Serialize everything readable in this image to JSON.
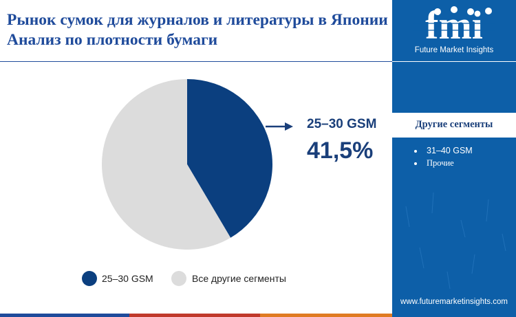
{
  "title": "Рынок сумок для журналов и литературы в Японии Анализ по плотности бумаги",
  "brand": {
    "logo_letters": "fmi",
    "tagline": "Future Market Insights",
    "website": "www.futuremarketinsights.com"
  },
  "callout": {
    "label": "25–30 GSM",
    "value": "41,5%"
  },
  "sidebar": {
    "header": "Другие сегменты",
    "items": [
      "31–40 GSM",
      "Прочие"
    ]
  },
  "colors": {
    "primary": "#0b3f7f",
    "secondary": "#dcdcdc",
    "title": "#1f4b9b",
    "sidebar_bg": "#0d5fa8",
    "footer": [
      "#1f4b9b",
      "#c0392b",
      "#e07b22",
      "#0d5fa8"
    ]
  },
  "chart_data": {
    "type": "pie",
    "slices": [
      {
        "name": "25–30 GSM",
        "value": 41.5,
        "color": "#0b3f7f"
      },
      {
        "name": "Все другие сегменты",
        "value": 58.5,
        "color": "#dcdcdc"
      }
    ],
    "start_angle_deg": 0,
    "direction": "clockwise",
    "legend_position": "bottom"
  }
}
